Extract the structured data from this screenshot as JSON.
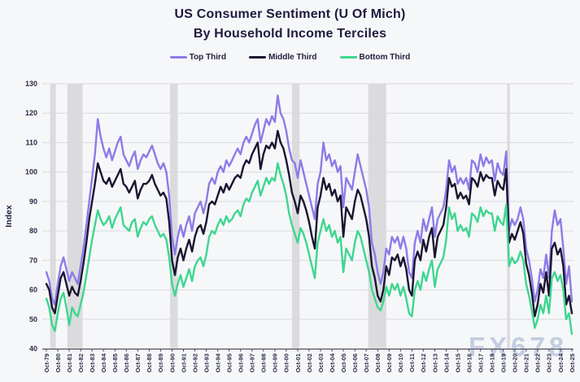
{
  "header": {
    "title_line1": "US Consumer Sentiment (U Of Mich)",
    "title_line2": "By Household Income Terciles"
  },
  "watermark": "FX678",
  "chart_data": {
    "type": "line",
    "title": "US Consumer Sentiment (U Of Mich) By Household Income Terciles",
    "xlabel": "",
    "ylabel": "Index",
    "ylim": [
      40,
      130
    ],
    "ytick_step": 10,
    "grid": "horizontal",
    "legend_position": "top",
    "x_start": 1979.75,
    "x_step": 0.25,
    "x_tick_labels": [
      "Oct-79",
      "Oct-80",
      "Oct-81",
      "Oct-82",
      "Oct-83",
      "Oct-84",
      "Oct-85",
      "Oct-86",
      "Oct-87",
      "Oct-88",
      "Oct-89",
      "Oct-90",
      "Oct-91",
      "Oct-92",
      "Oct-93",
      "Oct-94",
      "Oct-95",
      "Oct-96",
      "Oct-97",
      "Oct-98",
      "Oct-99",
      "Oct-00",
      "Oct-01",
      "Oct-02",
      "Oct-03",
      "Oct-04",
      "Oct-05",
      "Oct-06",
      "Oct-07",
      "Oct-08",
      "Oct-09",
      "Oct-10",
      "Oct-11",
      "Oct-12",
      "Oct-13",
      "Oct-14",
      "Oct-15",
      "Oct-16",
      "Oct-17",
      "Oct-18",
      "Oct-19",
      "Oct-20",
      "Oct-21",
      "Oct-22",
      "Oct-23",
      "Oct-24",
      "Oct-25"
    ],
    "recession_bands": [
      [
        1980.08,
        1980.58
      ],
      [
        1981.58,
        1982.92
      ],
      [
        1990.58,
        1991.25
      ],
      [
        2001.25,
        2001.92
      ],
      [
        2007.92,
        2009.5
      ],
      [
        2020.08,
        2020.33
      ]
    ],
    "band_color": "#dbdbde",
    "series": [
      {
        "name": "Top Third",
        "color": "#8c7be8",
        "values": [
          66,
          63,
          57,
          55,
          62,
          68,
          71,
          67,
          63,
          66,
          64,
          62,
          68,
          74,
          82,
          90,
          98,
          106,
          118,
          112,
          108,
          105,
          108,
          104,
          107,
          110,
          112,
          106,
          104,
          102,
          105,
          107,
          101,
          104,
          106,
          105,
          107,
          109,
          106,
          103,
          101,
          103,
          100,
          92,
          78,
          72,
          78,
          82,
          78,
          82,
          85,
          80,
          86,
          88,
          90,
          86,
          90,
          96,
          98,
          96,
          100,
          102,
          100,
          104,
          102,
          104,
          106,
          108,
          106,
          110,
          112,
          110,
          113,
          116,
          118,
          110,
          114,
          118,
          116,
          119,
          117,
          126,
          120,
          118,
          114,
          108,
          104,
          103,
          98,
          104,
          100,
          96,
          92,
          88,
          84,
          96,
          100,
          110,
          104,
          106,
          102,
          104,
          100,
          102,
          88,
          98,
          96,
          94,
          100,
          106,
          102,
          98,
          94,
          88,
          76,
          72,
          66,
          62,
          66,
          74,
          72,
          78,
          76,
          78,
          74,
          78,
          74,
          66,
          64,
          76,
          80,
          76,
          84,
          80,
          84,
          88,
          78,
          84,
          86,
          88,
          94,
          104,
          100,
          102,
          96,
          98,
          96,
          98,
          94,
          104,
          103,
          100,
          106,
          102,
          105,
          103,
          104,
          97,
          103,
          100,
          99,
          107,
          80,
          84,
          82,
          84,
          88,
          84,
          74,
          70,
          64,
          56,
          60,
          67,
          64,
          72,
          64,
          80,
          87,
          82,
          84,
          74,
          62,
          68,
          56
        ]
      },
      {
        "name": "Middle Third",
        "color": "#191530",
        "values": [
          62,
          60,
          54,
          52,
          58,
          64,
          66,
          62,
          58,
          61,
          59,
          58,
          63,
          69,
          76,
          84,
          90,
          96,
          103,
          100,
          97,
          96,
          98,
          95,
          97,
          99,
          101,
          96,
          95,
          93,
          95,
          97,
          91,
          94,
          96,
          96,
          97,
          99,
          96,
          94,
          92,
          93,
          91,
          83,
          70,
          65,
          71,
          74,
          70,
          74,
          77,
          73,
          78,
          81,
          82,
          79,
          83,
          89,
          90,
          89,
          92,
          95,
          93,
          96,
          94,
          96,
          98,
          99,
          98,
          102,
          104,
          103,
          106,
          108,
          110,
          101,
          106,
          109,
          108,
          110,
          108,
          114,
          110,
          108,
          104,
          99,
          93,
          90,
          86,
          92,
          90,
          87,
          83,
          78,
          74,
          88,
          92,
          98,
          94,
          96,
          92,
          94,
          90,
          92,
          78,
          88,
          86,
          84,
          90,
          94,
          92,
          88,
          84,
          78,
          68,
          64,
          58,
          56,
          60,
          68,
          65,
          71,
          70,
          72,
          68,
          71,
          67,
          60,
          58,
          70,
          73,
          70,
          77,
          73,
          78,
          81,
          71,
          78,
          80,
          82,
          88,
          98,
          95,
          96,
          91,
          93,
          91,
          92,
          89,
          98,
          97,
          95,
          100,
          97,
          99,
          98,
          98,
          92,
          97,
          95,
          94,
          101,
          76,
          79,
          77,
          80,
          83,
          79,
          69,
          65,
          59,
          51,
          55,
          62,
          59,
          66,
          58,
          74,
          76,
          72,
          74,
          68,
          55,
          58,
          52
        ]
      },
      {
        "name": "Bottom Third",
        "color": "#3ed68f",
        "values": [
          57,
          54,
          48,
          46,
          52,
          57,
          59,
          54,
          48,
          54,
          52,
          51,
          55,
          59,
          65,
          71,
          77,
          82,
          87,
          84,
          82,
          83,
          85,
          81,
          84,
          86,
          88,
          82,
          81,
          80,
          83,
          84,
          78,
          81,
          83,
          82,
          84,
          85,
          82,
          80,
          78,
          79,
          77,
          71,
          62,
          58,
          62,
          65,
          61,
          64,
          67,
          63,
          68,
          70,
          71,
          68,
          72,
          78,
          80,
          79,
          82,
          84,
          82,
          85,
          83,
          84,
          86,
          87,
          85,
          89,
          91,
          90,
          93,
          95,
          97,
          92,
          95,
          98,
          96,
          98,
          97,
          103,
          99,
          96,
          92,
          86,
          82,
          79,
          76,
          81,
          79,
          76,
          72,
          68,
          64,
          76,
          80,
          84,
          80,
          82,
          78,
          80,
          76,
          78,
          66,
          74,
          72,
          70,
          76,
          80,
          78,
          74,
          70,
          66,
          60,
          57,
          54,
          53,
          56,
          61,
          58,
          62,
          60,
          62,
          58,
          61,
          57,
          52,
          51,
          60,
          63,
          60,
          66,
          63,
          67,
          70,
          61,
          67,
          69,
          71,
          77,
          88,
          84,
          86,
          80,
          82,
          80,
          81,
          78,
          86,
          85,
          83,
          88,
          85,
          87,
          86,
          86,
          80,
          85,
          83,
          82,
          89,
          68,
          71,
          69,
          70,
          73,
          70,
          62,
          58,
          53,
          47,
          50,
          55,
          52,
          58,
          52,
          64,
          66,
          63,
          65,
          60,
          50,
          52,
          45
        ]
      }
    ]
  }
}
